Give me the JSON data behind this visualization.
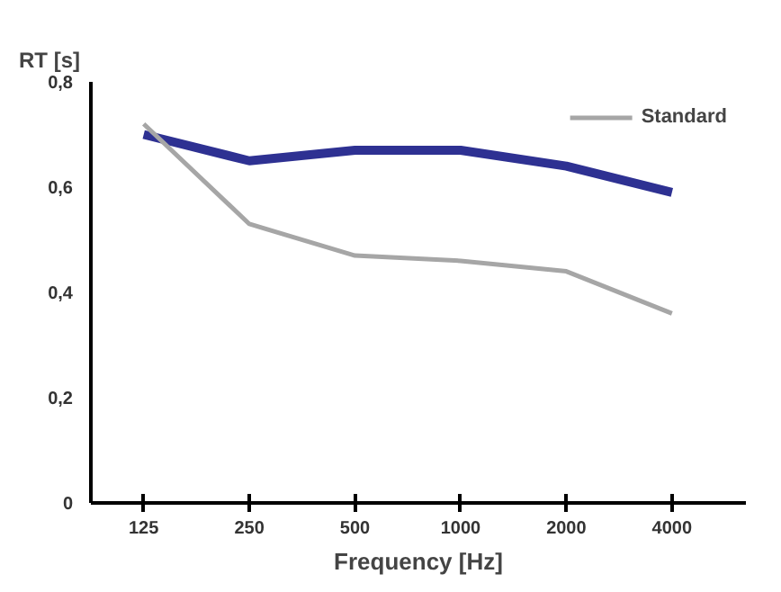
{
  "chart_data": {
    "type": "line",
    "ylabel": "RT [s]",
    "xlabel": "Frequency [Hz]",
    "categories": [
      "125",
      "250",
      "500",
      "1000",
      "2000",
      "4000"
    ],
    "series": [
      {
        "color": "#2e3192",
        "values": [
          0.7,
          0.65,
          0.67,
          0.67,
          0.64,
          0.59
        ]
      },
      {
        "name": "Standard",
        "color": "#a6a6a6",
        "values": [
          0.72,
          0.53,
          0.47,
          0.46,
          0.44,
          0.36
        ]
      }
    ],
    "ylim": [
      0,
      0.8
    ],
    "yticks": [
      {
        "value": 0,
        "label": "0"
      },
      {
        "value": 0.2,
        "label": "0,2"
      },
      {
        "value": 0.4,
        "label": "0,4"
      },
      {
        "value": 0.6,
        "label": "0,6"
      },
      {
        "value": 0.8,
        "label": "0,8"
      }
    ],
    "grid": false,
    "legend": "top right",
    "marker": "none",
    "line_style": "solid"
  }
}
